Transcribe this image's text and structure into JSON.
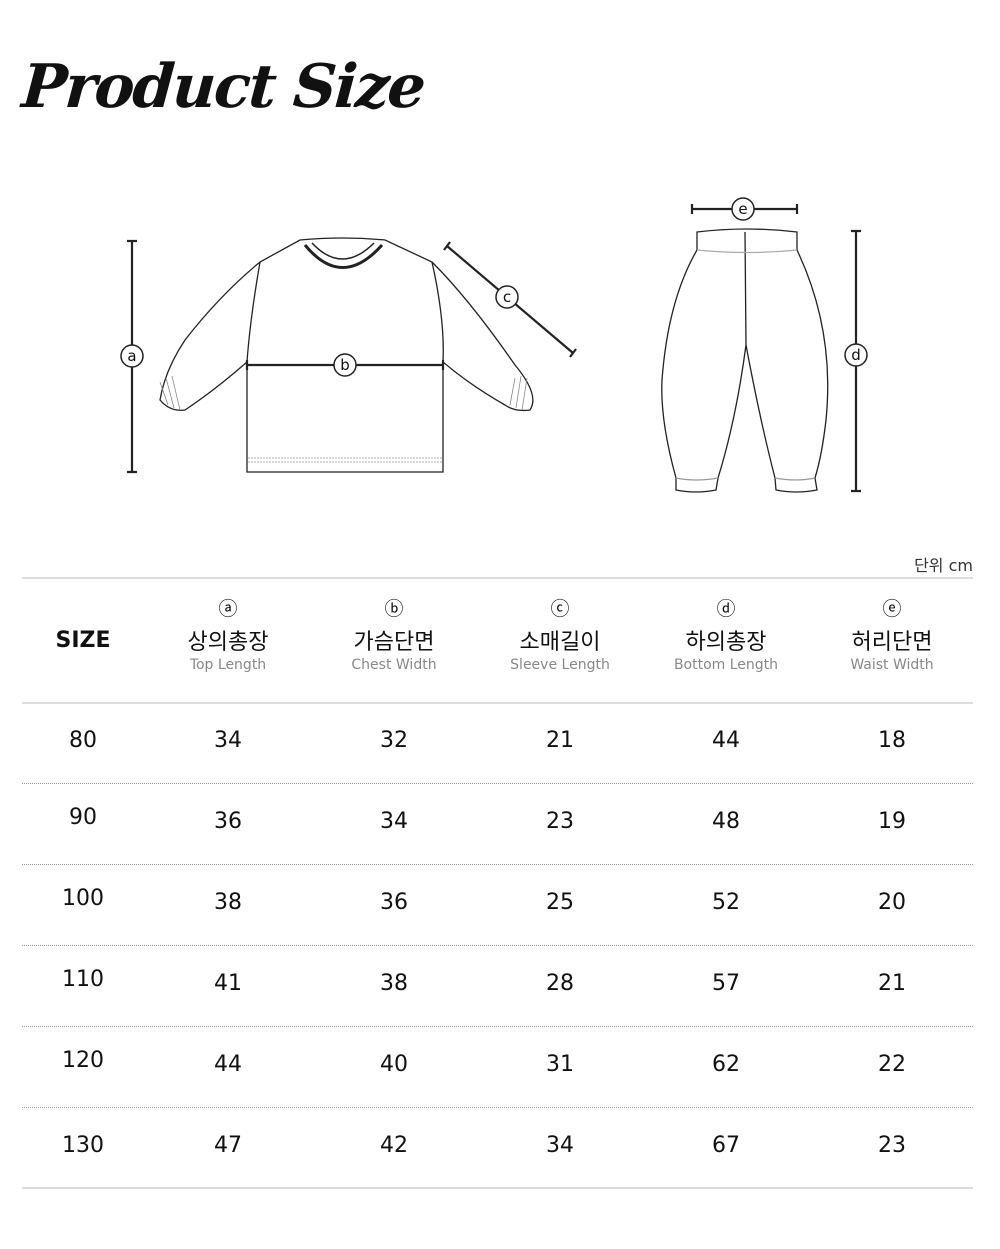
{
  "title": "Product Size",
  "diagram": {
    "labels": {
      "a": "a",
      "b": "b",
      "c": "c",
      "d": "d",
      "e": "e"
    }
  },
  "unit": "단위 cm",
  "table": {
    "size_header": "SIZE",
    "columns": [
      {
        "mark": "ⓐ",
        "ko": "상의총장",
        "en": "Top Length"
      },
      {
        "mark": "ⓑ",
        "ko": "가슴단면",
        "en": "Chest Width"
      },
      {
        "mark": "ⓒ",
        "ko": "소매길이",
        "en": "Sleeve Length"
      },
      {
        "mark": "ⓓ",
        "ko": "하의총장",
        "en": "Bottom Length"
      },
      {
        "mark": "ⓔ",
        "ko": "허리단면",
        "en": "Waist Width"
      }
    ],
    "rows": [
      {
        "size": "80",
        "values": [
          "34",
          "32",
          "21",
          "44",
          "18"
        ]
      },
      {
        "size": "90",
        "values": [
          "36",
          "34",
          "23",
          "48",
          "19"
        ]
      },
      {
        "size": "100",
        "values": [
          "38",
          "36",
          "25",
          "52",
          "20"
        ]
      },
      {
        "size": "110",
        "values": [
          "41",
          "38",
          "28",
          "57",
          "21"
        ]
      },
      {
        "size": "120",
        "values": [
          "44",
          "40",
          "31",
          "62",
          "22"
        ]
      },
      {
        "size": "130",
        "values": [
          "47",
          "42",
          "34",
          "67",
          "23"
        ]
      }
    ]
  }
}
